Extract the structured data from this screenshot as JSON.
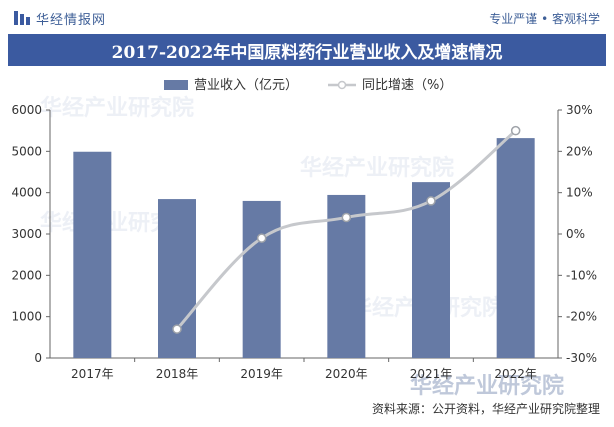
{
  "header": {
    "brand": "华经情报网",
    "tagline": "专业严谨 • 客观科学"
  },
  "footer": {
    "source": "资料来源：公开资料，华经产业研究院整理"
  },
  "watermark": {
    "text": "华经产业研究院",
    "url": "www.huaon.com"
  },
  "colors": {
    "accent": "#3b5aa0",
    "bar": "#667aa5",
    "line": "#c6c8cc"
  },
  "chart_data": {
    "type": "bar",
    "title": "2017-2022年中国原料药行业营业收入及增速情况",
    "categories": [
      "2017年",
      "2018年",
      "2019年",
      "2020年",
      "2021年",
      "2022年"
    ],
    "series": [
      {
        "name": "营业收入（亿元）",
        "type": "bar",
        "axis": "left",
        "values": [
          4990,
          3845,
          3800,
          3945,
          4255,
          5320
        ]
      },
      {
        "name": "同比增速（%）",
        "type": "line",
        "axis": "right",
        "values": [
          null,
          -23,
          -1,
          4,
          8,
          25
        ]
      }
    ],
    "y_left": {
      "min": 0,
      "max": 6000,
      "ticks": [
        "0",
        "1000",
        "2000",
        "3000",
        "4000",
        "5000",
        "6000"
      ]
    },
    "y_right": {
      "min": -30,
      "max": 30,
      "ticks": [
        "-30%",
        "-20%",
        "-10%",
        "0%",
        "10%",
        "20%",
        "30%"
      ]
    },
    "grid": false,
    "legend": "top-left"
  }
}
